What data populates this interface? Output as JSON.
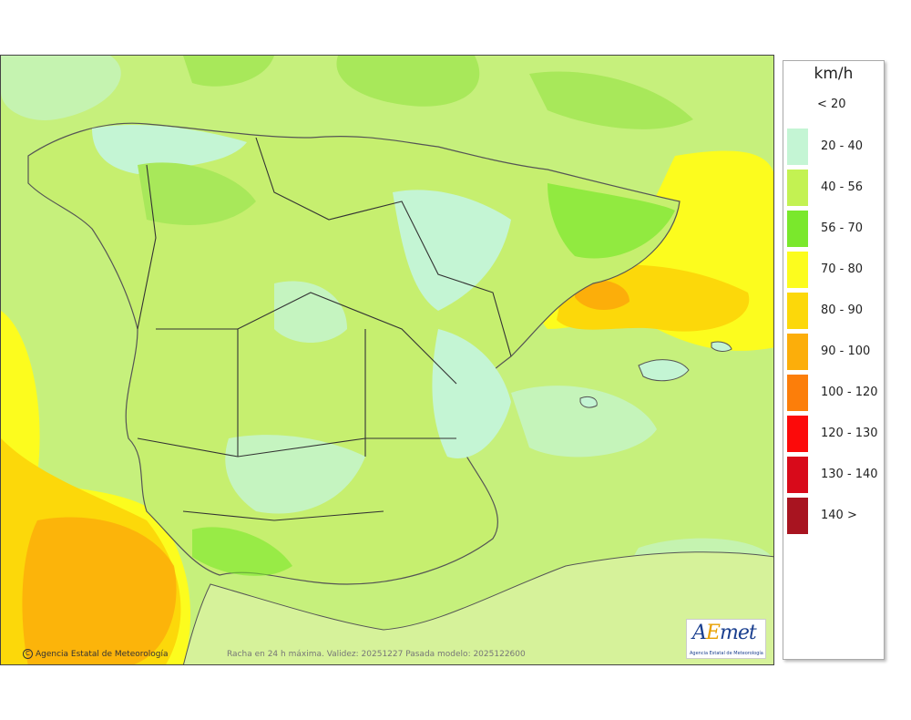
{
  "map": {
    "credit": "Agencia Estatal de Meteorología",
    "validity_text": "Racha en 24 h máxima. Validez: 20251227 Pasada modelo: 2025122600",
    "logo": {
      "word": "AEmet",
      "subtitle": "Agencia Estatal de Meteorología"
    }
  },
  "legend": {
    "unit": "km/h",
    "below_label": "< 20",
    "items": [
      {
        "label": "20 - 40",
        "color": "#c4f5d4"
      },
      {
        "label": "40 - 56",
        "color": "#c3f252"
      },
      {
        "label": "56 - 70",
        "color": "#7ae82c"
      },
      {
        "label": "70 - 80",
        "color": "#fcfc1e"
      },
      {
        "label": "80 - 90",
        "color": "#fcd80a"
      },
      {
        "label": "90 - 100",
        "color": "#fcae0a"
      },
      {
        "label": "100 - 120",
        "color": "#fc7e0a"
      },
      {
        "label": "120 - 130",
        "color": "#fc0a0a"
      },
      {
        "label": "130 - 140",
        "color": "#d80a1a"
      },
      {
        "label": "140 >",
        "color": "#a81420"
      }
    ]
  }
}
